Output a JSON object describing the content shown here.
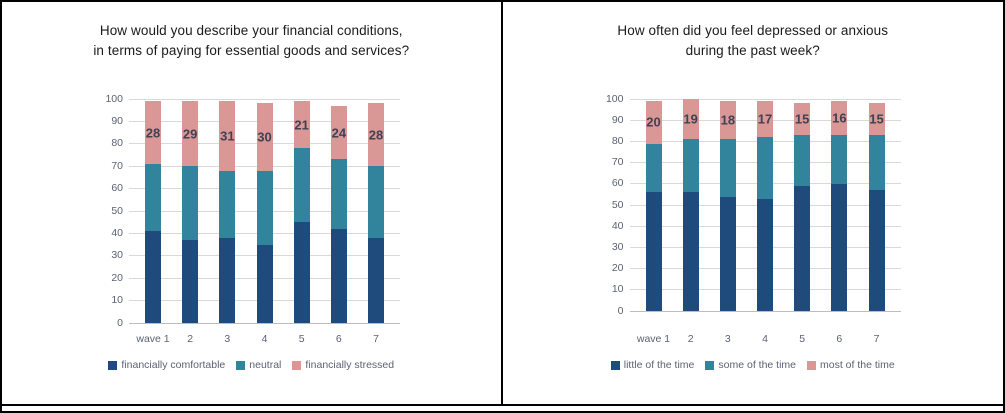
{
  "page": {
    "background": "#ffffff",
    "border_color": "#000000"
  },
  "styles": {
    "grid_color": "#D9D9D9",
    "axis_line_color": "#BDBDBD",
    "tick_label_color": "#5A6272",
    "legend_text_color": "#5A6272",
    "data_label_color": "#3E4254",
    "title_color": "#1A1A1A",
    "bar_colors": {
      "dark_blue": "#1F4B7C",
      "teal": "#31849B",
      "pink": "#D99795"
    }
  },
  "chart_data": [
    {
      "type": "bar",
      "stacked": true,
      "title_lines": [
        "How would you describe your financial conditions,",
        "in terms of paying for essential goods and services?"
      ],
      "categories": [
        "wave 1",
        "2",
        "3",
        "4",
        "5",
        "6",
        "7"
      ],
      "series": [
        {
          "name": "financially comfortable",
          "color": "#1F4B7C",
          "values": [
            41,
            37,
            38,
            35,
            45,
            42,
            38
          ]
        },
        {
          "name": "neutral",
          "color": "#31849B",
          "values": [
            30,
            33,
            30,
            33,
            33,
            31,
            32
          ]
        },
        {
          "name": "financially stressed",
          "color": "#D99795",
          "values": [
            28,
            29,
            31,
            30,
            21,
            24,
            28
          ],
          "data_labels": true
        }
      ],
      "ylim": [
        0,
        100
      ],
      "ytick_step": 10,
      "grid": true,
      "legend_position": "bottom"
    },
    {
      "type": "bar",
      "stacked": true,
      "title_lines": [
        "How often did you feel depressed or anxious",
        "during the past week?"
      ],
      "categories": [
        "wave 1",
        "2",
        "3",
        "4",
        "5",
        "6",
        "7"
      ],
      "series": [
        {
          "name": "little of the time",
          "color": "#1F4B7C",
          "values": [
            56,
            56,
            54,
            53,
            59,
            60,
            57
          ]
        },
        {
          "name": "some of the time",
          "color": "#31849B",
          "values": [
            23,
            25,
            27,
            29,
            24,
            23,
            26
          ]
        },
        {
          "name": "most of the time",
          "color": "#D99795",
          "values": [
            20,
            19,
            18,
            17,
            15,
            16,
            15
          ],
          "data_labels": true
        }
      ],
      "ylim": [
        0,
        100
      ],
      "ytick_step": 10,
      "grid": true,
      "legend_position": "bottom"
    }
  ]
}
